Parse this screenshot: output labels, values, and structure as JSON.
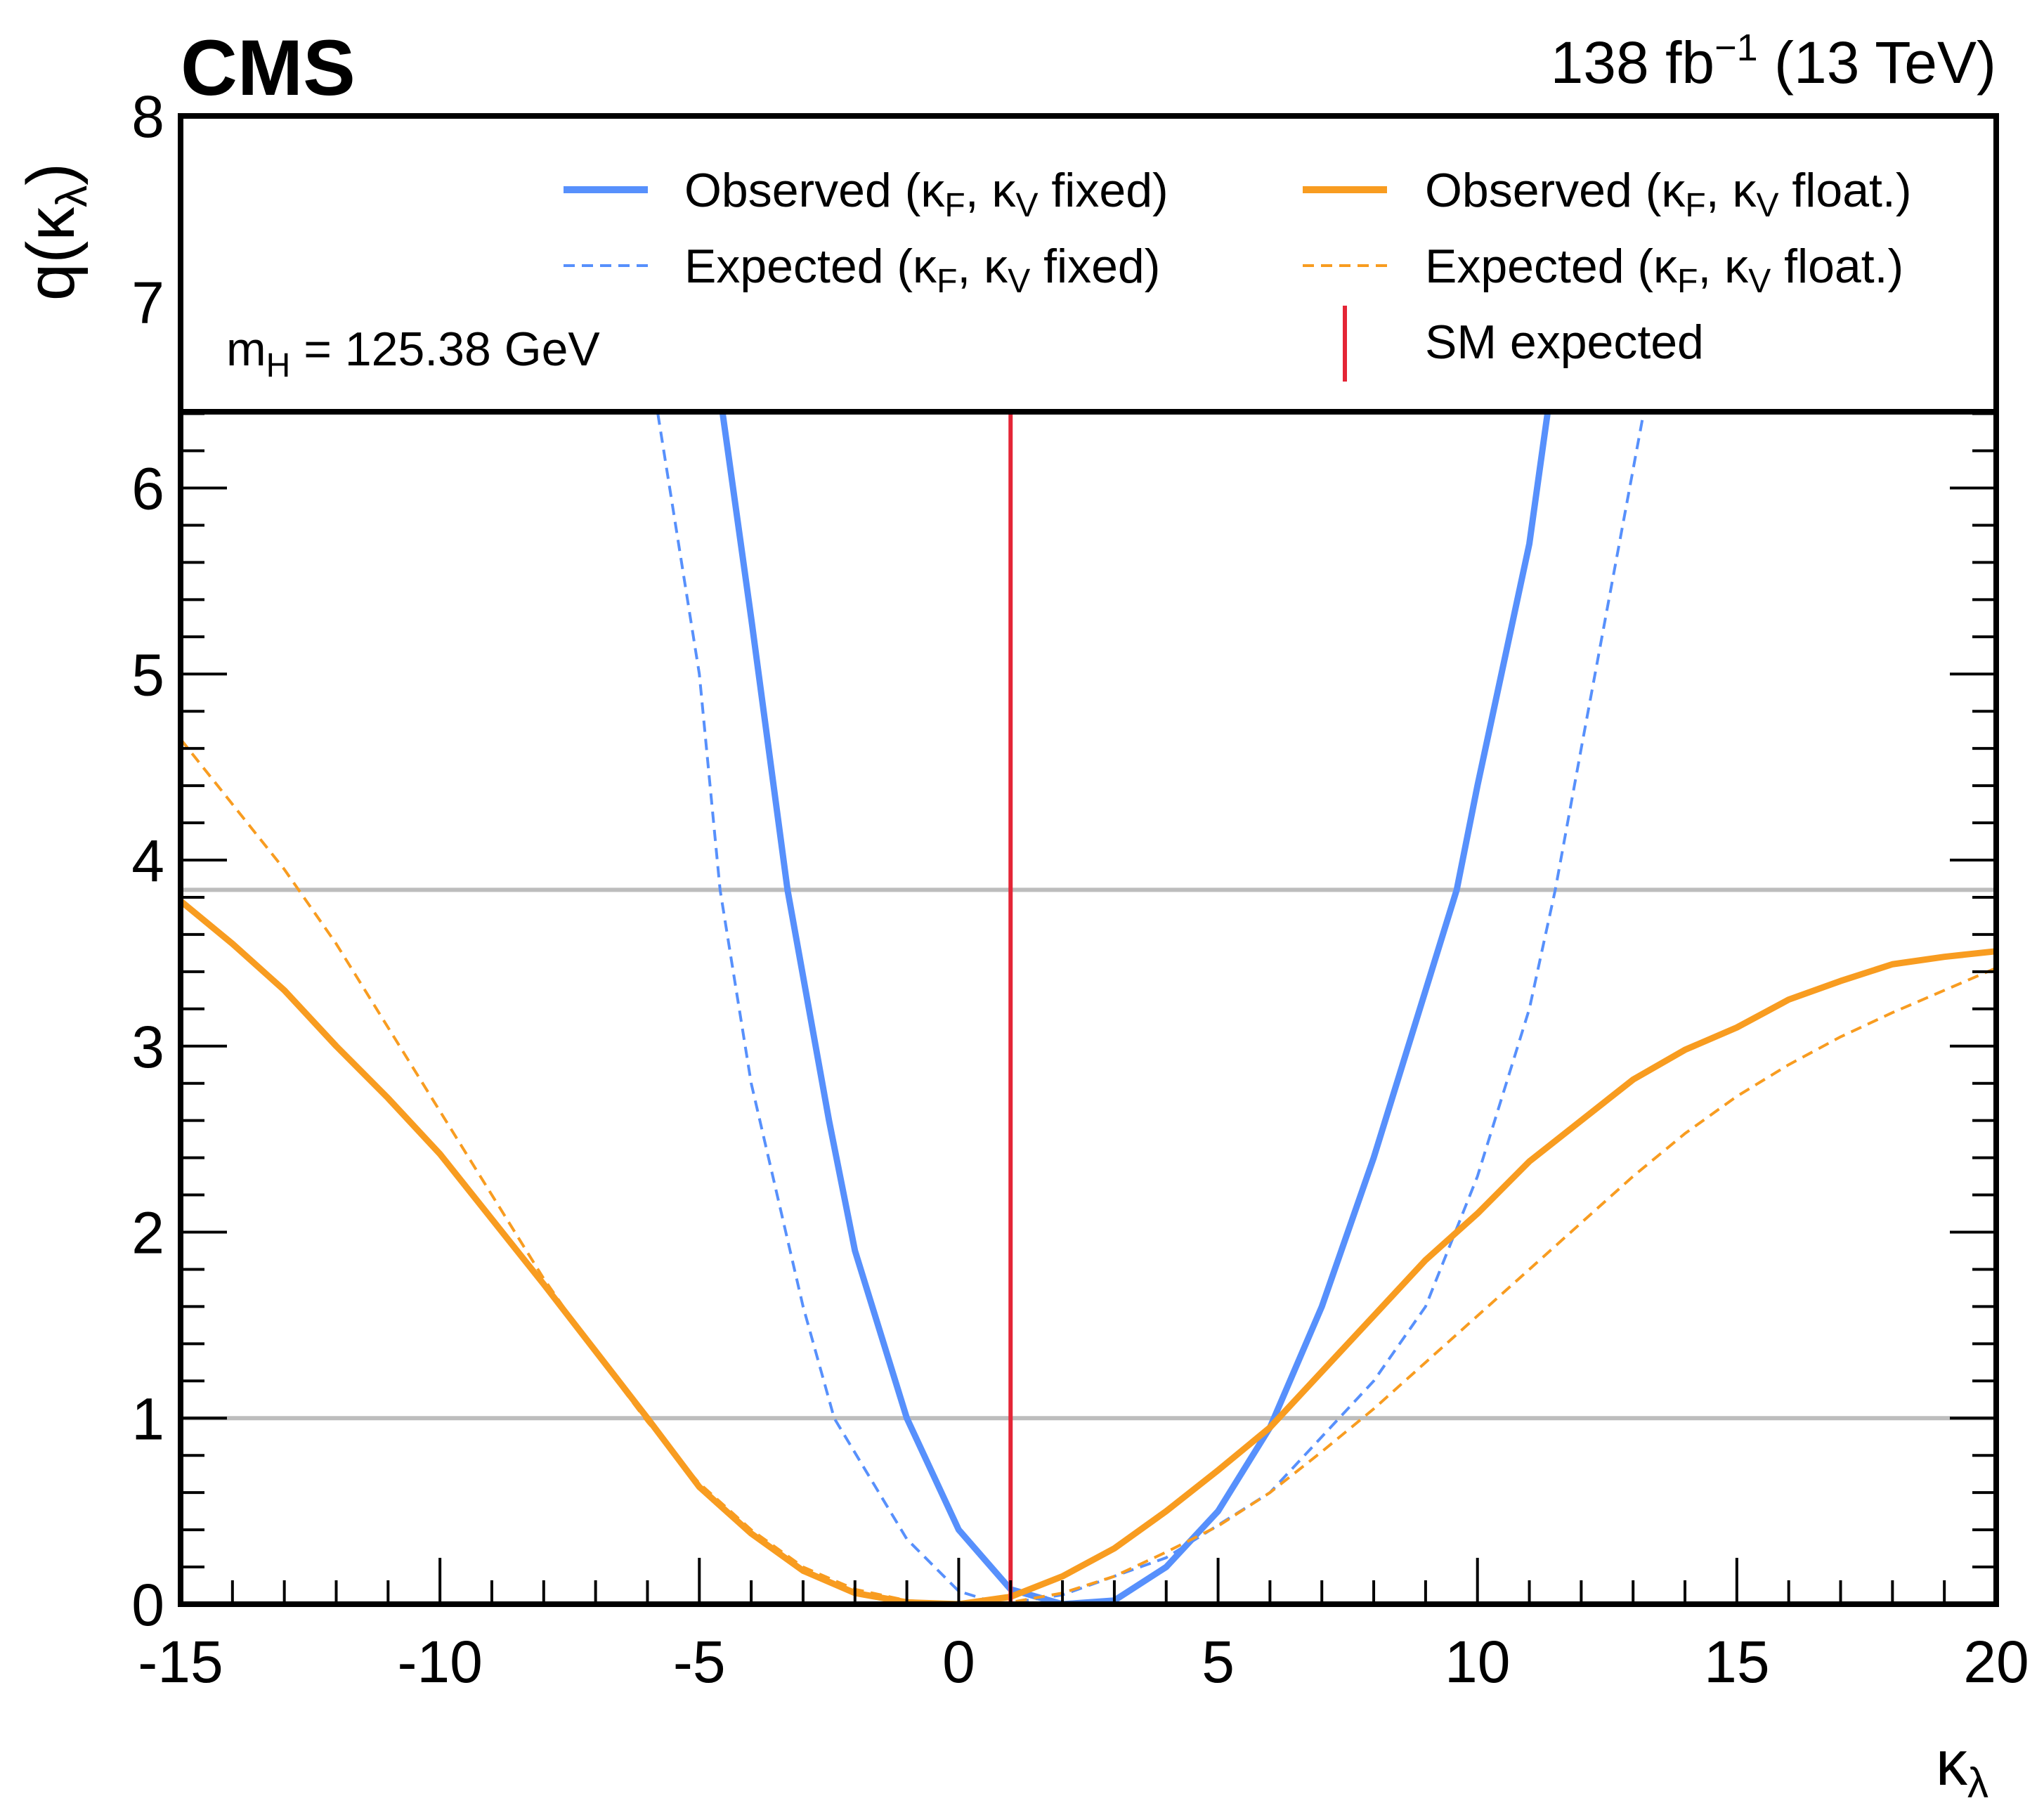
{
  "header": {
    "experiment": "CMS",
    "lumi_value": "138 fb",
    "lumi_sup": "−1",
    "lumi_energy": " (13 TeV)"
  },
  "annotation": {
    "mass_main": "m",
    "mass_sub": "H",
    "mass_rest": " = 125.38 GeV"
  },
  "colors": {
    "observed_fixed": "#5790fc",
    "observed_float": "#f89c20",
    "sm": "#e42536",
    "reference": "#bdbdbd"
  },
  "chart_data": {
    "type": "line",
    "title": "",
    "xlabel": {
      "main": "κ",
      "sub": "λ"
    },
    "ylabel": {
      "main": "q(κ",
      "sub": "λ",
      "end": ")"
    },
    "xlim": [
      -15,
      20
    ],
    "ylim": [
      0,
      8
    ],
    "xticks": [
      "-15",
      "-10",
      "-5",
      "0",
      "5",
      "10",
      "15",
      "20"
    ],
    "yticks": [
      "0",
      "1",
      "2",
      "3",
      "4",
      "5",
      "6",
      "7",
      "8"
    ],
    "reference_lines": [
      1,
      3.84
    ],
    "sm_expected_x": 1,
    "legend": {
      "placement": "top",
      "entries": [
        {
          "main": "Observed (κ",
          "s1": "F",
          "mid": ", κ",
          "s2": "V",
          "end": " fixed)"
        },
        {
          "main": "Expected (κ",
          "s1": "F",
          "mid": ", κ",
          "s2": "V",
          "end": " fixed)"
        },
        {
          "main": "Observed (κ",
          "s1": "F",
          "mid": ", κ",
          "s2": "V",
          "end": " float.)"
        },
        {
          "main": "Expected (κ",
          "s1": "F",
          "mid": ", κ",
          "s2": "V",
          "end": " float.)"
        },
        {
          "main": "SM expected"
        }
      ]
    },
    "series": [
      {
        "name": "Observed (κF, κV fixed)",
        "style": "solid",
        "color": "#5790fc",
        "x": [
          -4.55,
          -4,
          -3.3,
          -2.5,
          -2,
          -1,
          0,
          1,
          2,
          3,
          4,
          5,
          6,
          7,
          8,
          9,
          9.6,
          10,
          11,
          11.35
        ],
        "y": [
          6.4,
          5.3,
          3.84,
          2.6,
          1.9,
          1.0,
          0.4,
          0.08,
          0.0,
          0.02,
          0.2,
          0.5,
          0.95,
          1.6,
          2.4,
          3.3,
          3.84,
          4.4,
          5.7,
          6.4
        ]
      },
      {
        "name": "Expected (κF, κV fixed)",
        "style": "dashed",
        "color": "#5790fc",
        "x": [
          -5.8,
          -5,
          -4.6,
          -4,
          -3,
          -2.4,
          -1,
          0,
          0.8,
          2,
          4,
          6,
          8,
          9,
          10,
          11,
          11.5,
          12,
          13.2
        ],
        "y": [
          6.4,
          5.0,
          3.84,
          2.8,
          1.6,
          1.0,
          0.35,
          0.07,
          0.0,
          0.05,
          0.25,
          0.6,
          1.2,
          1.6,
          2.3,
          3.2,
          3.84,
          4.6,
          6.4
        ]
      },
      {
        "name": "Observed (κF, κV float.)",
        "style": "solid",
        "color": "#f89c20",
        "x": [
          -15,
          -14,
          -13,
          -12,
          -11,
          -10,
          -9,
          -8,
          -7,
          -6,
          -5,
          -4,
          -3,
          -2,
          -1,
          0,
          1,
          2,
          3,
          4,
          5,
          6,
          7,
          8,
          9,
          10,
          11,
          12,
          13,
          14,
          15,
          16,
          17,
          18,
          19,
          20
        ],
        "y": [
          3.78,
          3.55,
          3.3,
          3.0,
          2.72,
          2.42,
          2.07,
          1.72,
          1.36,
          1.0,
          0.63,
          0.38,
          0.18,
          0.06,
          0.01,
          0.0,
          0.04,
          0.15,
          0.3,
          0.5,
          0.72,
          0.95,
          1.25,
          1.55,
          1.85,
          2.1,
          2.38,
          2.6,
          2.82,
          2.98,
          3.1,
          3.25,
          3.35,
          3.44,
          3.48,
          3.51
        ]
      },
      {
        "name": "Expected (κF, κV float.)",
        "style": "dashed",
        "color": "#f89c20",
        "x": [
          -15,
          -14,
          -13,
          -12,
          -11,
          -10,
          -9,
          -8,
          -7,
          -6,
          -5,
          -4,
          -3,
          -2,
          -1,
          0,
          1,
          2,
          3,
          4,
          5,
          6,
          7,
          8,
          9,
          10,
          11,
          12,
          13,
          14,
          15,
          16,
          17,
          18,
          19,
          20
        ],
        "y": [
          4.65,
          4.3,
          3.95,
          3.55,
          3.1,
          2.65,
          2.2,
          1.75,
          1.35,
          0.98,
          0.65,
          0.4,
          0.2,
          0.08,
          0.02,
          0.0,
          0.01,
          0.06,
          0.15,
          0.28,
          0.42,
          0.6,
          0.82,
          1.05,
          1.3,
          1.55,
          1.8,
          2.05,
          2.3,
          2.53,
          2.73,
          2.9,
          3.05,
          3.18,
          3.3,
          3.42
        ]
      }
    ]
  }
}
